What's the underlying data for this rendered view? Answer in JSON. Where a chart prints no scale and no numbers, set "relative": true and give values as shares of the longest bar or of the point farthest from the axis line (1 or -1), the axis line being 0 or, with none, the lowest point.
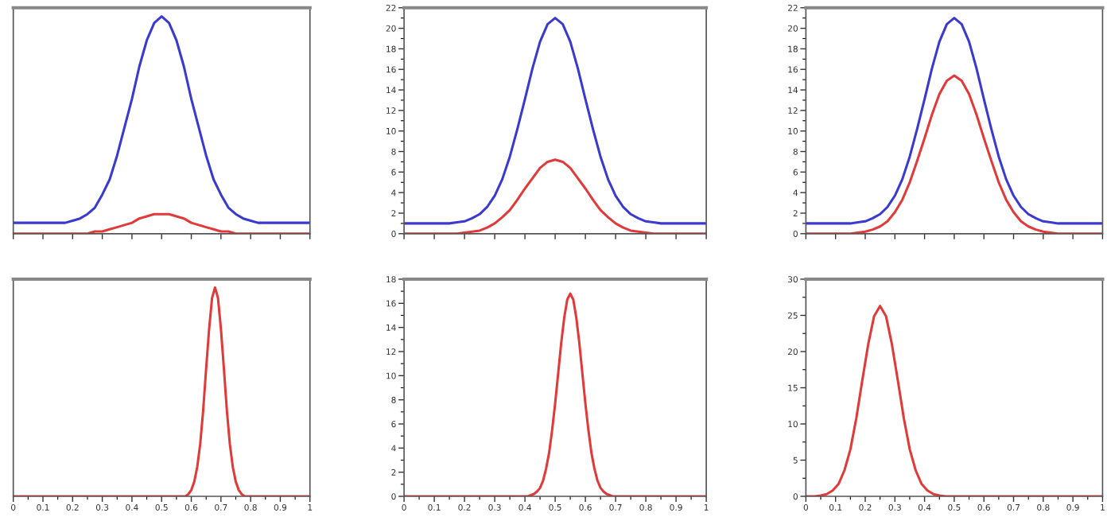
{
  "chart_data": [
    {
      "type": "line",
      "relative": true,
      "tick_labels": false,
      "categories": [
        null,
        null,
        null,
        null,
        null,
        null,
        null,
        null,
        null,
        null,
        null,
        null,
        null,
        null,
        null,
        null,
        null,
        null,
        null,
        null,
        null,
        null,
        null,
        null,
        null,
        null,
        null,
        null,
        null,
        null,
        null,
        null,
        null,
        null,
        null,
        null,
        null,
        null,
        null,
        null,
        null
      ],
      "series": [
        {
          "color": "#3a3ad0",
          "values": [
            0.05,
            0.05,
            0.05,
            0.05,
            0.05,
            0.05,
            0.05,
            0.05,
            0.06,
            0.07,
            0.09,
            0.12,
            0.18,
            0.25,
            0.36,
            0.49,
            0.62,
            0.77,
            0.89,
            0.97,
            1,
            0.97,
            0.89,
            0.77,
            0.62,
            0.49,
            0.36,
            0.25,
            0.18,
            0.12,
            0.09,
            0.07,
            0.06,
            0.05,
            0.05,
            0.05,
            0.05,
            0.05,
            0.05,
            0.05,
            0.05
          ]
        },
        {
          "color": "#e03a3a",
          "values": [
            0,
            0,
            0,
            0,
            0,
            0,
            0,
            0,
            0,
            0,
            0,
            0.01,
            0.01,
            0.02,
            0.03,
            0.04,
            0.05,
            0.07,
            0.08,
            0.09,
            0.09,
            0.09,
            0.08,
            0.07,
            0.05,
            0.04,
            0.03,
            0.02,
            0.01,
            0.01,
            0,
            0,
            0,
            0,
            0,
            0,
            0,
            0,
            0,
            0,
            0
          ]
        }
      ]
    },
    {
      "type": "line",
      "tick_labels": "y",
      "ylim": [
        0,
        22
      ],
      "yticks": [
        0,
        2,
        4,
        6,
        8,
        10,
        12,
        14,
        16,
        18,
        20,
        22
      ],
      "categories": [
        null,
        null,
        null,
        null,
        null,
        null,
        null,
        null,
        null,
        null,
        null,
        null,
        null,
        null,
        null,
        null,
        null,
        null,
        null,
        null,
        null,
        null,
        null,
        null,
        null,
        null,
        null,
        null,
        null,
        null,
        null,
        null,
        null,
        null,
        null,
        null,
        null,
        null,
        null,
        null,
        null
      ],
      "series": [
        {
          "color": "#3a3ad0",
          "values": [
            1,
            1,
            1,
            1,
            1,
            1,
            1,
            1.1,
            1.2,
            1.5,
            1.9,
            2.6,
            3.7,
            5.3,
            7.5,
            10.2,
            13.1,
            16.1,
            18.7,
            20.4,
            21,
            20.4,
            18.7,
            16.1,
            13.1,
            10.2,
            7.5,
            5.3,
            3.7,
            2.6,
            1.9,
            1.5,
            1.2,
            1.1,
            1,
            1,
            1,
            1,
            1,
            1,
            1
          ]
        },
        {
          "color": "#e03a3a",
          "values": [
            0,
            0,
            0,
            0,
            0,
            0,
            0,
            0,
            0.1,
            0.2,
            0.3,
            0.6,
            1,
            1.6,
            2.3,
            3.3,
            4.4,
            5.4,
            6.4,
            7,
            7.2,
            7,
            6.4,
            5.4,
            4.4,
            3.3,
            2.3,
            1.6,
            1,
            0.6,
            0.3,
            0.2,
            0.1,
            0,
            0,
            0,
            0,
            0,
            0,
            0,
            0
          ]
        }
      ]
    },
    {
      "type": "line",
      "tick_labels": "y",
      "ylim": [
        0,
        22
      ],
      "yticks": [
        0,
        2,
        4,
        6,
        8,
        10,
        12,
        14,
        16,
        18,
        20,
        22
      ],
      "categories": [
        null,
        null,
        null,
        null,
        null,
        null,
        null,
        null,
        null,
        null,
        null,
        null,
        null,
        null,
        null,
        null,
        null,
        null,
        null,
        null,
        null,
        null,
        null,
        null,
        null,
        null,
        null,
        null,
        null,
        null,
        null,
        null,
        null,
        null,
        null,
        null,
        null,
        null,
        null,
        null,
        null
      ],
      "series": [
        {
          "color": "#3a3ad0",
          "values": [
            1,
            1,
            1,
            1,
            1,
            1,
            1,
            1.1,
            1.2,
            1.5,
            1.9,
            2.6,
            3.7,
            5.3,
            7.5,
            10.2,
            13.1,
            16.1,
            18.7,
            20.4,
            21,
            20.4,
            18.7,
            16.1,
            13.1,
            10.2,
            7.5,
            5.3,
            3.7,
            2.6,
            1.9,
            1.5,
            1.2,
            1.1,
            1,
            1,
            1,
            1,
            1,
            1,
            1
          ]
        },
        {
          "color": "#e03a3a",
          "values": [
            0,
            0,
            0,
            0,
            0,
            0,
            0,
            0.1,
            0.2,
            0.4,
            0.7,
            1.2,
            2.1,
            3.3,
            5,
            7.1,
            9.3,
            11.6,
            13.6,
            14.9,
            15.4,
            14.9,
            13.6,
            11.6,
            9.3,
            7.1,
            5,
            3.3,
            2.1,
            1.2,
            0.7,
            0.4,
            0.2,
            0.1,
            0,
            0,
            0,
            0,
            0,
            0,
            0
          ]
        }
      ]
    },
    {
      "type": "line",
      "relative": true,
      "tick_labels": "x",
      "xlim": [
        0,
        1
      ],
      "xticks": [
        0,
        0.1,
        0.2,
        0.3,
        0.4,
        0.5,
        0.6,
        0.7,
        0.8,
        0.9,
        1
      ],
      "series": [
        {
          "color": "#e03a3a",
          "x": [
            0,
            0.58,
            0.59,
            0.6,
            0.61,
            0.62,
            0.63,
            0.64,
            0.65,
            0.66,
            0.67,
            0.68,
            0.69,
            0.7,
            0.71,
            0.72,
            0.73,
            0.74,
            0.75,
            0.76,
            0.77,
            0.78,
            1
          ],
          "values": [
            0,
            0,
            0.01,
            0.03,
            0.07,
            0.14,
            0.25,
            0.41,
            0.61,
            0.8,
            0.95,
            1,
            0.95,
            0.8,
            0.61,
            0.41,
            0.25,
            0.14,
            0.07,
            0.03,
            0.01,
            0,
            0
          ]
        }
      ]
    },
    {
      "type": "line",
      "xlim": [
        0,
        1
      ],
      "xticks": [
        0,
        0.1,
        0.2,
        0.3,
        0.4,
        0.5,
        0.6,
        0.7,
        0.8,
        0.9,
        1
      ],
      "ylim": [
        0,
        18
      ],
      "yticks": [
        0,
        2,
        4,
        6,
        8,
        10,
        12,
        14,
        16,
        18
      ],
      "series": [
        {
          "color": "#e03a3a",
          "x": [
            0,
            0.41,
            0.42,
            0.43,
            0.44,
            0.45,
            0.46,
            0.47,
            0.48,
            0.49,
            0.5,
            0.51,
            0.52,
            0.53,
            0.54,
            0.55,
            0.56,
            0.57,
            0.58,
            0.59,
            0.6,
            0.61,
            0.62,
            0.63,
            0.64,
            0.65,
            0.66,
            0.67,
            0.68,
            0.69,
            1
          ],
          "values": [
            0,
            0,
            0.1,
            0.2,
            0.4,
            0.7,
            1.3,
            2.3,
            3.6,
            5.5,
            7.7,
            10.2,
            12.7,
            14.8,
            16.3,
            16.8,
            16.3,
            14.8,
            12.7,
            10.2,
            7.7,
            5.5,
            3.6,
            2.3,
            1.3,
            0.7,
            0.4,
            0.2,
            0.1,
            0,
            0
          ]
        }
      ]
    },
    {
      "type": "line",
      "xlim": [
        0,
        1
      ],
      "xticks": [
        0,
        0.1,
        0.2,
        0.3,
        0.4,
        0.5,
        0.6,
        0.7,
        0.8,
        0.9,
        1
      ],
      "ylim": [
        0,
        30
      ],
      "yticks": [
        0,
        5,
        10,
        15,
        20,
        25,
        30
      ],
      "series": [
        {
          "color": "#e03a3a",
          "x": [
            0,
            0.03,
            0.05,
            0.07,
            0.09,
            0.11,
            0.13,
            0.15,
            0.17,
            0.19,
            0.21,
            0.23,
            0.25,
            0.27,
            0.29,
            0.31,
            0.33,
            0.35,
            0.37,
            0.39,
            0.41,
            0.43,
            0.45,
            0.47,
            1
          ],
          "values": [
            0,
            0,
            0.1,
            0.3,
            0.8,
            1.7,
            3.6,
            6.5,
            10.8,
            16,
            21,
            24.9,
            26.3,
            24.9,
            21,
            16,
            10.8,
            6.5,
            3.6,
            1.7,
            0.8,
            0.3,
            0.1,
            0,
            0
          ]
        }
      ]
    }
  ]
}
